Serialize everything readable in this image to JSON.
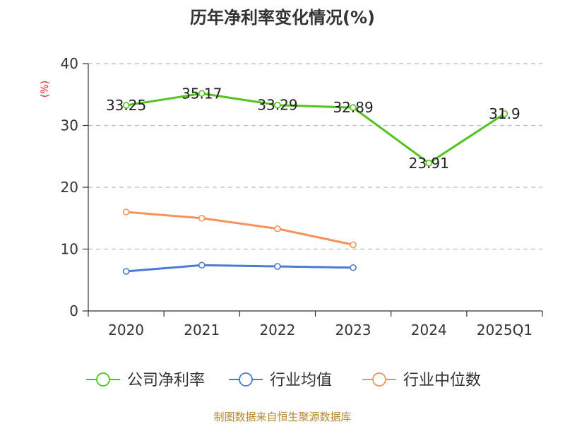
{
  "chart_data": {
    "type": "line",
    "title": "历年净利率变化情况(%)",
    "ylabel": "(%)",
    "xlabel": "",
    "categories": [
      "2020",
      "2021",
      "2022",
      "2023",
      "2024",
      "2025Q1"
    ],
    "ylim": [
      0,
      40
    ],
    "yticks": [
      0,
      10,
      20,
      30,
      40
    ],
    "grid": true,
    "legend_position": "bottom",
    "series": [
      {
        "name": "公司净利率",
        "color": "#52c41a",
        "values": [
          33.25,
          35.17,
          33.29,
          32.89,
          23.91,
          31.9
        ],
        "labels": [
          "33.25",
          "35.17",
          "33.29",
          "32.89",
          "23.91",
          "31.9"
        ]
      },
      {
        "name": "行业均值",
        "color": "#4a7bd6",
        "values": [
          6.4,
          7.4,
          7.2,
          7.0,
          null,
          null
        ]
      },
      {
        "name": "行业中位数",
        "color": "#f4935a",
        "values": [
          16.0,
          15.0,
          13.3,
          10.7,
          null,
          null
        ]
      }
    ],
    "source": "制图数据来自恒生聚源数据库"
  }
}
